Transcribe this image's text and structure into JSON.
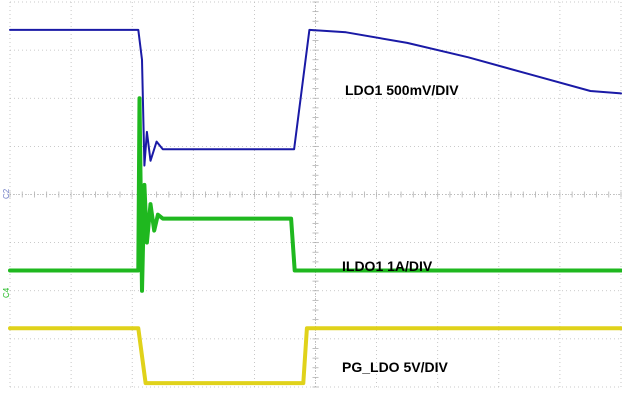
{
  "chart_data": {
    "type": "line",
    "title": "",
    "xlabel": "",
    "ylabel": "",
    "grid": true,
    "grid_divisions": {
      "x": 10,
      "y": 8
    },
    "xlim": [
      0,
      10
    ],
    "ylim": [
      0,
      8
    ],
    "series": [
      {
        "name": "LDO1 500mV/DIV",
        "color": "#1a1aa6",
        "x": [
          0,
          2.1,
          2.16,
          2.2,
          2.24,
          2.3,
          2.4,
          2.5,
          3.0,
          4.0,
          4.6,
          4.65,
          4.9,
          5.5,
          6.5,
          7.5,
          8.5,
          9.5,
          10.0
        ],
        "values": [
          7.42,
          7.42,
          6.8,
          4.6,
          5.3,
          4.7,
          5.1,
          4.94,
          4.94,
          4.94,
          4.94,
          4.94,
          7.42,
          7.37,
          7.15,
          6.85,
          6.5,
          6.15,
          6.1
        ]
      },
      {
        "name": "ILDO1 1A/DIV",
        "color": "#1fb81f",
        "x": [
          0,
          2.1,
          2.12,
          2.16,
          2.2,
          2.24,
          2.3,
          2.36,
          2.42,
          2.5,
          3.0,
          4.0,
          4.6,
          4.66,
          5.5,
          7.0,
          8.5,
          10.0
        ],
        "values": [
          2.42,
          2.42,
          6.0,
          2.0,
          4.2,
          3.0,
          3.8,
          3.25,
          3.58,
          3.5,
          3.5,
          3.5,
          3.5,
          2.42,
          2.42,
          2.42,
          2.42,
          2.42
        ]
      },
      {
        "name": "PG_LDO 5V/DIV",
        "color": "#e0d21a",
        "x": [
          0,
          2.1,
          2.22,
          3.5,
          4.8,
          4.86,
          6.0,
          8.0,
          10.0
        ],
        "values": [
          1.22,
          1.22,
          0.08,
          0.08,
          0.08,
          1.22,
          1.22,
          1.22,
          1.22
        ]
      }
    ],
    "channel_markers": [
      {
        "label": "C2",
        "color": "#6e7cc4"
      },
      {
        "label": "C4",
        "color": "#1fb81f"
      }
    ],
    "annotations": [
      {
        "text": "LDO1 500mV/DIV",
        "series": 0
      },
      {
        "text": "ILDO1 1A/DIV",
        "series": 1
      },
      {
        "text": "PG_LDO 5V/DIV",
        "series": 2
      }
    ]
  }
}
